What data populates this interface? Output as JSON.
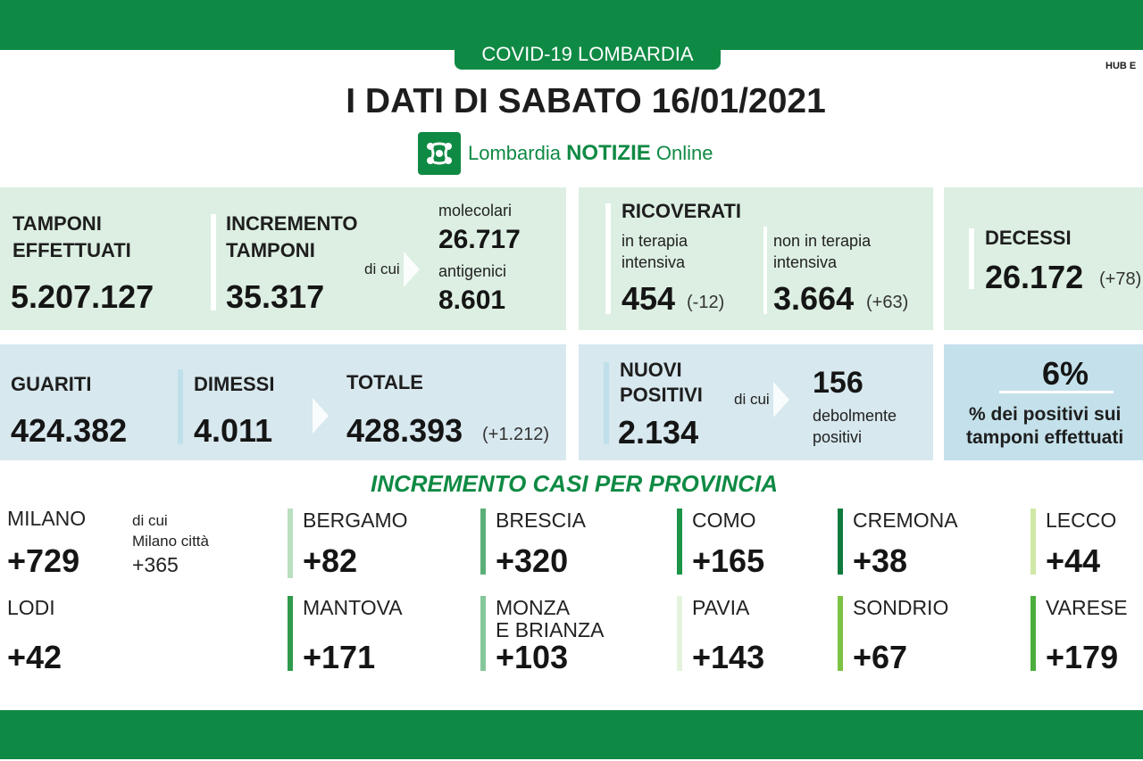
{
  "header": {
    "tag": "COVID-19 LOMBARDIA",
    "hub": "HUB E",
    "title": "I DATI DI SABATO 16/01/2021",
    "logo_icon": "lombardia-rosa-camuna-icon",
    "logo_prefix": "Lombardia",
    "logo_brand": "NOTIZIE",
    "logo_suffix": "Online"
  },
  "tamponi": {
    "label_line1": "TAMPONI",
    "label_line2": "EFFETTUATI",
    "value": "5.207.127"
  },
  "incremento": {
    "label_line1": "INCREMENTO",
    "label_line2": "TAMPONI",
    "value": "35.317",
    "di_cui": "di cui",
    "molecolari_label": "molecolari",
    "molecolari_value": "26.717",
    "antigenici_label": "antigenici",
    "antigenici_value": "8.601"
  },
  "ricoverati": {
    "label": "RICOVERATI",
    "ti_line1": "in terapia",
    "ti_line2": "intensiva",
    "ti_value": "454",
    "ti_delta": "(-12)",
    "nti_line1": "non in terapia",
    "nti_line2": "intensiva",
    "nti_value": "3.664",
    "nti_delta": "(+63)"
  },
  "decessi": {
    "label": "DECESSI",
    "value": "26.172",
    "delta": "(+78)"
  },
  "guariti": {
    "guariti_label": "GUARITI",
    "guariti_value": "424.382",
    "dimessi_label": "DIMESSI",
    "dimessi_value": "4.011",
    "totale_label": "TOTALE",
    "totale_value": "428.393",
    "totale_delta": "(+1.212)"
  },
  "positivi": {
    "label_line1": "NUOVI",
    "label_line2": "POSITIVI",
    "value": "2.134",
    "di_cui": "di cui",
    "deboli_value": "156",
    "deboli_line1": "debolmente",
    "deboli_line2": "positivi"
  },
  "percentuale": {
    "value": "6%",
    "line1": "% dei positivi sui",
    "line2": "tamponi effettuati"
  },
  "province": {
    "title": "INCREMENTO CASI PER PROVINCIA",
    "milano_note_line1": "di cui",
    "milano_note_line2": "Milano città",
    "milano_note_value": "+365",
    "items": [
      {
        "name": "MILANO",
        "value": "+729",
        "color": "#ffffff"
      },
      {
        "name": "BERGAMO",
        "value": "+82",
        "color": "#b9dfc0"
      },
      {
        "name": "BRESCIA",
        "value": "+320",
        "color": "#5cae78"
      },
      {
        "name": "COMO",
        "value": "+165",
        "color": "#1b9448"
      },
      {
        "name": "CREMONA",
        "value": "+38",
        "color": "#0e7a3e"
      },
      {
        "name": "LECCO",
        "value": "+44",
        "color": "#cfe8a6"
      },
      {
        "name": "LODI",
        "value": "+42",
        "color": "#ffffff"
      },
      {
        "name": "MANTOVA",
        "value": "+171",
        "color": "#2f9a4c"
      },
      {
        "name": "MONZA",
        "name2": "E BRIANZA",
        "value": "+103",
        "color": "#86c79a"
      },
      {
        "name": "PAVIA",
        "value": "+143",
        "color": "#e6f3dc"
      },
      {
        "name": "SONDRIO",
        "value": "+67",
        "color": "#7cc243"
      },
      {
        "name": "VARESE",
        "value": "+179",
        "color": "#4caf3c"
      }
    ]
  }
}
